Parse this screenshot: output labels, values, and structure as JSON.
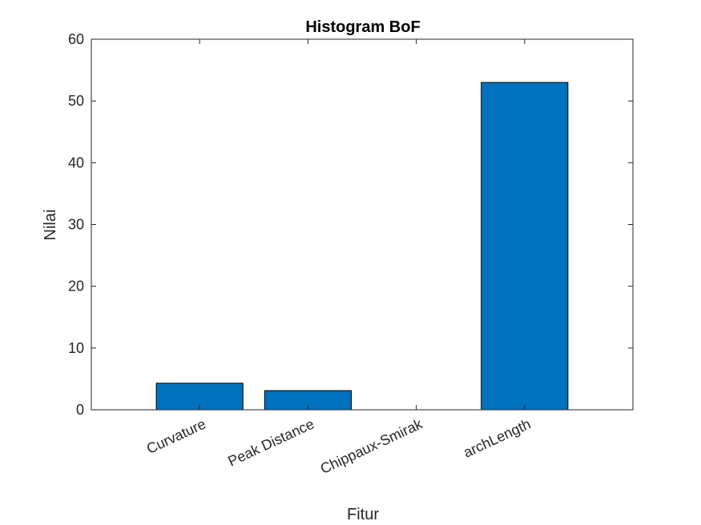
{
  "chart_data": {
    "type": "bar",
    "title": "Histogram BoF",
    "xlabel": "Fitur",
    "ylabel": "Nilai",
    "categories": [
      "Curvature",
      "Peak Distance",
      "Chippaux-Smirak",
      "archLength"
    ],
    "values": [
      4.3,
      3.1,
      0,
      53
    ],
    "ylim": [
      0,
      60
    ],
    "yticks": [
      "0",
      "10",
      "20",
      "30",
      "40",
      "50",
      "60"
    ],
    "bar_color": "#0072BD",
    "grid": false,
    "legend": "none"
  }
}
